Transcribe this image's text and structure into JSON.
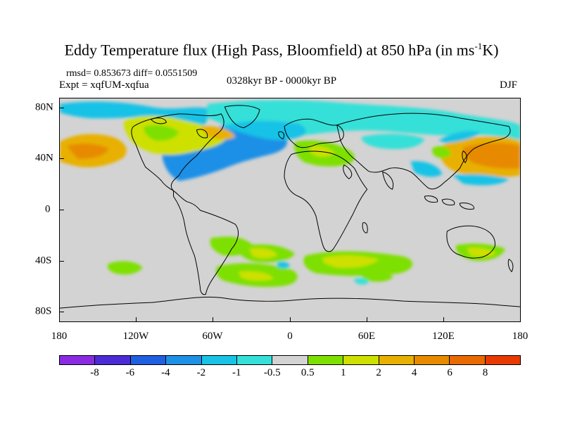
{
  "title": {
    "main": "Eddy Temperature flux (High Pass, Bloomfield) at 850 hPa (in ms",
    "sup": "-1",
    "tail": "K)"
  },
  "stats": "rmsd= 0.853673 diff= 0.0551509",
  "expt": "Expt = xqfUM-xqfua",
  "period": "0328kyr BP - 0000kyr BP",
  "season": "DJF",
  "x_ticks": [
    "180",
    "120W",
    "60W",
    "0",
    "60E",
    "120E",
    "180"
  ],
  "y_ticks": [
    "80N",
    "40N",
    "0",
    "40S",
    "80S"
  ],
  "colorbar": {
    "labels": [
      "-8",
      "-6",
      "-4",
      "-2",
      "-1",
      "-0.5",
      "0.5",
      "1",
      "2",
      "4",
      "6",
      "8"
    ],
    "colors": [
      "#8a2be2",
      "#4b2bd6",
      "#1f5fe0",
      "#1e90e6",
      "#19c3e6",
      "#35e0d8",
      "#d3d3d3",
      "#7de000",
      "#cde000",
      "#e8b000",
      "#e88a00",
      "#e86a00",
      "#e83a00"
    ]
  },
  "palette": {
    "ocean_gray": "#d3d3d3",
    "strong_neg": "#1e90e6",
    "neg": "#19c3e6",
    "weak_neg": "#35e0d8",
    "weak_pos": "#7de000",
    "pos": "#cde000",
    "strong_pos": "#e8b000",
    "very_pos": "#e88a00"
  }
}
